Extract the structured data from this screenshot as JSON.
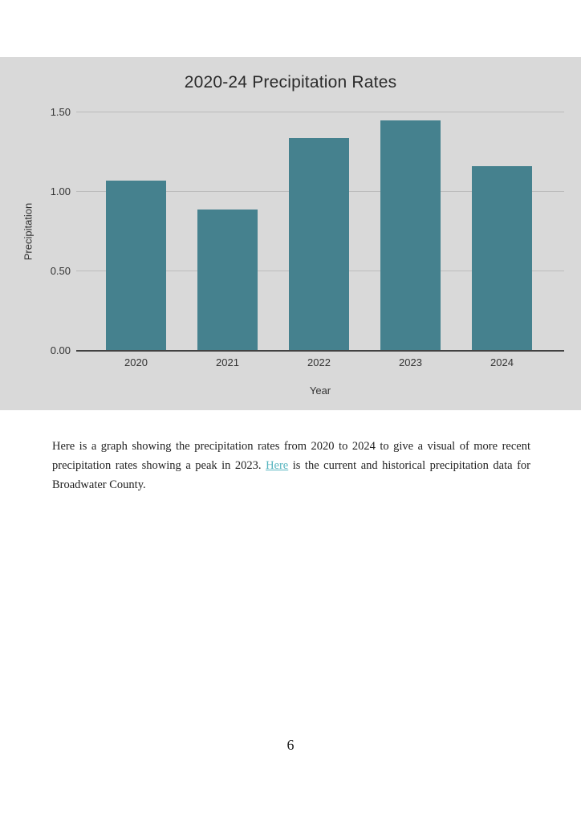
{
  "chart_data": {
    "type": "bar",
    "title": "2020-24 Precipitation Rates",
    "categories": [
      "2020",
      "2021",
      "2022",
      "2023",
      "2024"
    ],
    "values": [
      1.07,
      0.89,
      1.34,
      1.45,
      1.16
    ],
    "xlabel": "Year",
    "ylabel": "Precipitation",
    "ylim": [
      0,
      1.5
    ],
    "yticks": [
      0.0,
      0.5,
      1.0,
      1.5
    ],
    "ytick_labels": [
      "0.00",
      "0.50",
      "1.00",
      "1.50"
    ],
    "grid": true,
    "legend_position": "none",
    "colors": {
      "bar": "#45818e",
      "plot_background": "#d9d9d9",
      "gridline": "#bbbbbb",
      "axis_line": "#424242",
      "text": "#333333"
    }
  },
  "paragraph": {
    "before_link": "Here is a graph showing the precipitation rates from 2020 to 2024 to give a visual of more recent precipitation rates showing a peak in 2023. ",
    "link_text": "Here",
    "after_link": " is the current and historical precipitation data for Broadwater County.",
    "link_color": "#55b4bf"
  },
  "footer": {
    "page_number": "6"
  }
}
